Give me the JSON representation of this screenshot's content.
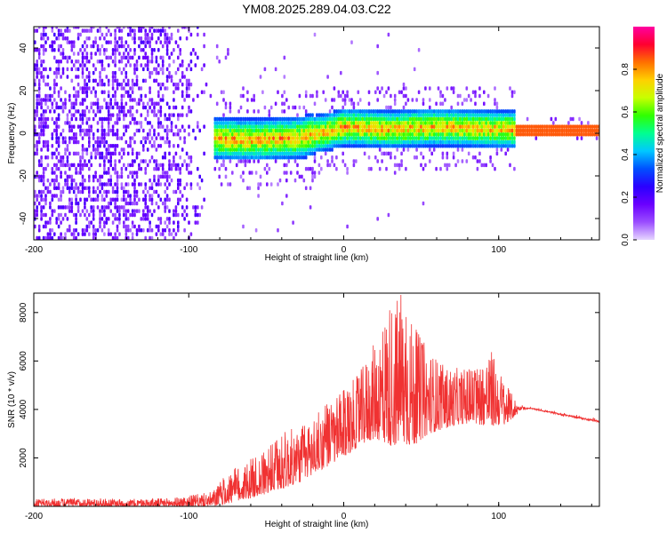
{
  "chart_data": [
    {
      "type": "heatmap",
      "title": "YM08.2025.289.04.03.C22",
      "xlabel": "Height of straight line (km)",
      "ylabel": "Frequency (Hz)",
      "xlim": [
        -200,
        165
      ],
      "ylim": [
        -50,
        50
      ],
      "x_ticks": [
        -200,
        -100,
        0,
        100
      ],
      "y_ticks": [
        -40,
        -20,
        0,
        20,
        40
      ],
      "colorbar": {
        "label": "Normalized spectral amplitude",
        "range": [
          0.0,
          1.0
        ],
        "ticks": [
          0.0,
          0.2,
          0.4,
          0.6,
          0.8
        ],
        "colors": [
          "#e6d6ff",
          "#9a4dff",
          "#6a00ff",
          "#2a00ff",
          "#0050ff",
          "#00c8ff",
          "#00ff90",
          "#30ff00",
          "#c8ff00",
          "#ffd000",
          "#ff7000",
          "#ff0030",
          "#ff00a0"
        ]
      },
      "band_center_hz": [
        {
          "x": -100,
          "y": -3
        },
        {
          "x": -60,
          "y": -4
        },
        {
          "x": -30,
          "y": -3
        },
        {
          "x": -10,
          "y": 0
        },
        {
          "x": 0,
          "y": 2
        },
        {
          "x": 30,
          "y": 1
        },
        {
          "x": 60,
          "y": 2
        },
        {
          "x": 100,
          "y": 1
        },
        {
          "x": 165,
          "y": 0.5
        }
      ]
    },
    {
      "type": "line",
      "xlabel": "Height of straight line (km)",
      "ylabel": "SNR (10 * v/v)",
      "xlim": [
        -200,
        165
      ],
      "ylim": [
        0,
        8800
      ],
      "x_ticks": [
        -200,
        -100,
        0,
        100
      ],
      "y_ticks": [
        2000,
        4000,
        6000,
        8000
      ],
      "series": [
        {
          "name": "SNR",
          "color": "#f03232",
          "envelope_x": [
            -200,
            -170,
            -140,
            -110,
            -95,
            -85,
            -75,
            -62,
            -50,
            -40,
            -28,
            -15,
            0,
            10,
            20,
            30,
            38,
            45,
            55,
            65,
            75,
            85,
            95,
            105,
            112,
            120,
            140,
            165
          ],
          "envelope_low": [
            0,
            0,
            0,
            0,
            0,
            0,
            100,
            300,
            500,
            700,
            1000,
            1500,
            2000,
            2500,
            2800,
            2500,
            2500,
            2500,
            3000,
            3200,
            3400,
            3400,
            3300,
            3400,
            3800,
            4000,
            3700,
            3400
          ],
          "envelope_high": [
            300,
            350,
            300,
            350,
            500,
            600,
            1400,
            1900,
            2300,
            3100,
            3300,
            4000,
            4800,
            5500,
            6800,
            8600,
            8800,
            7500,
            6500,
            5800,
            5700,
            5800,
            6500,
            5000,
            4300,
            4100,
            3900,
            3600
          ]
        }
      ]
    }
  ]
}
